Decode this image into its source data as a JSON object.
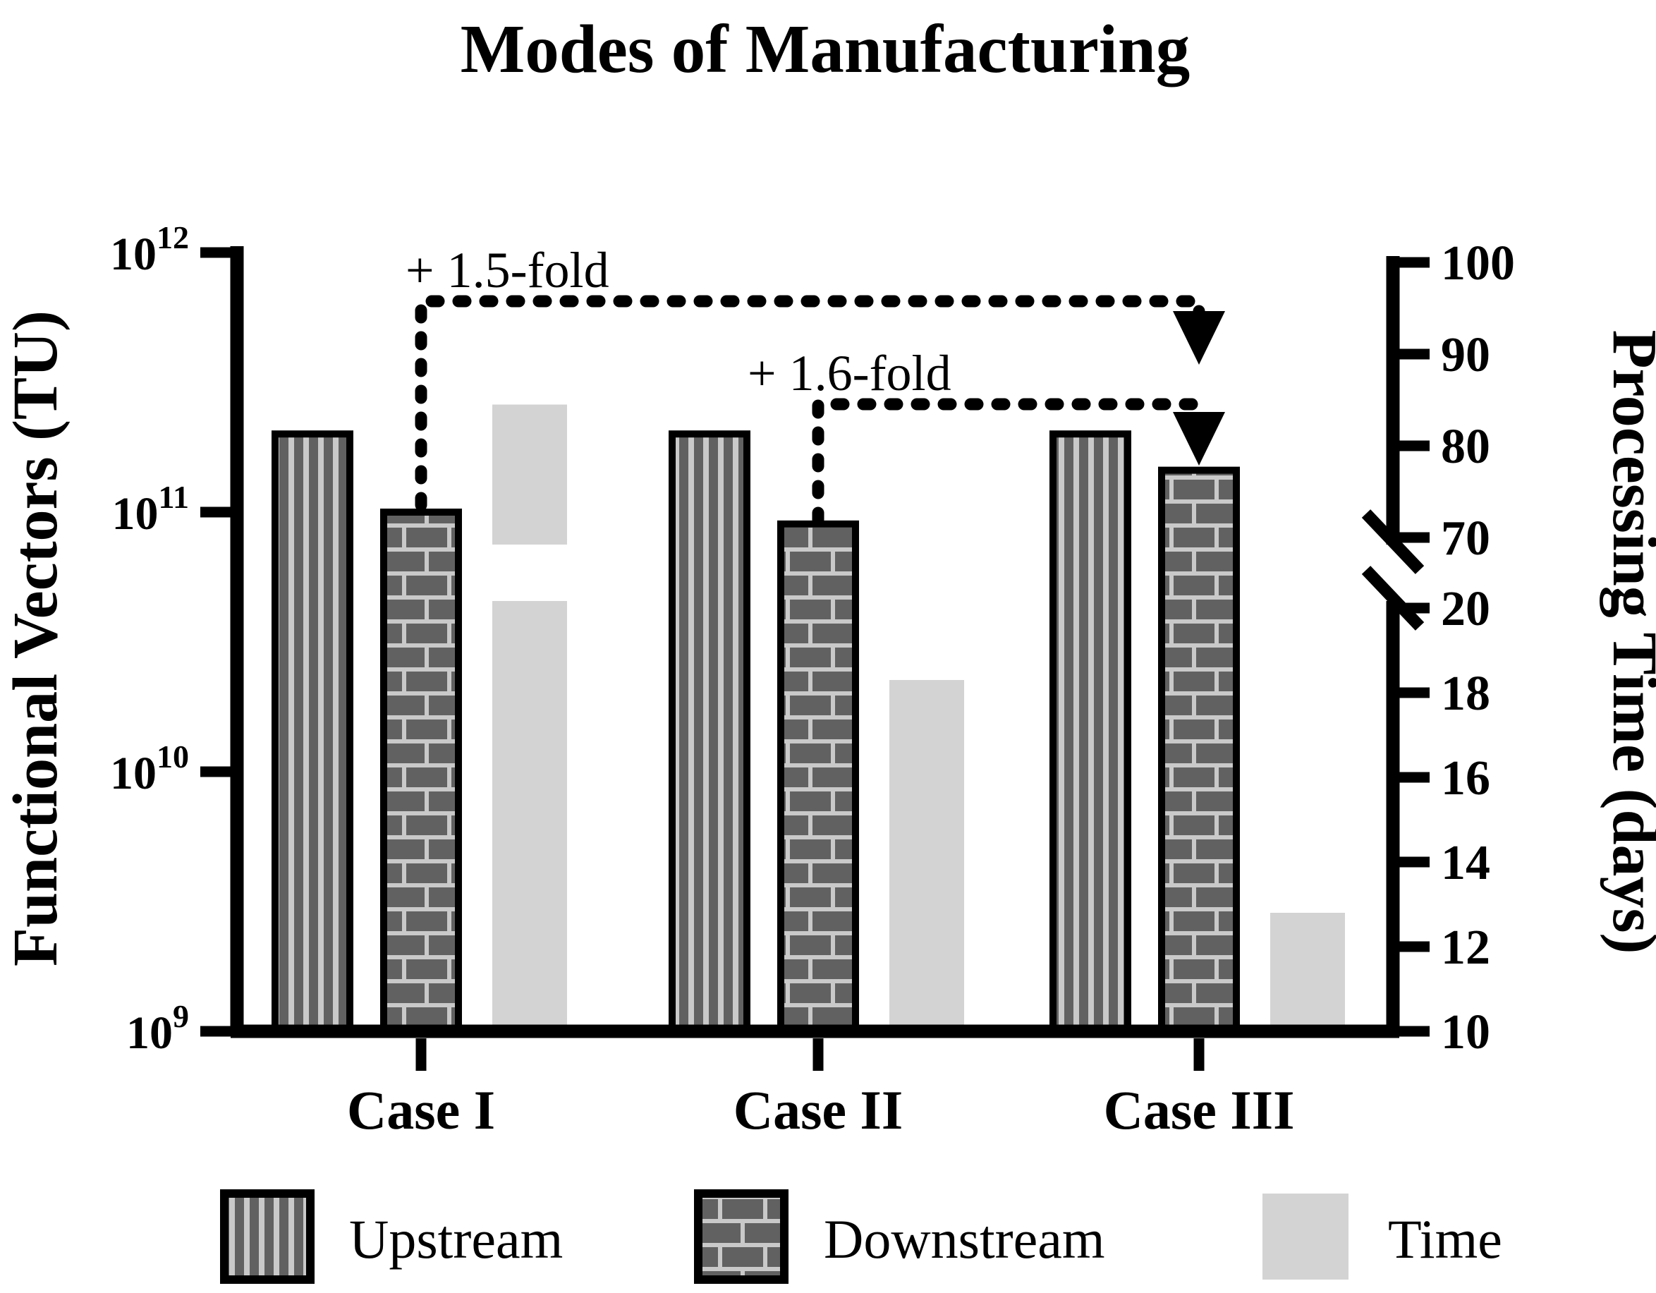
{
  "title": "Modes of Manufacturing",
  "chart_data": {
    "type": "bar",
    "categories": [
      "Case I",
      "Case II",
      "Case III"
    ],
    "series": [
      {
        "name": "Upstream",
        "axis": "left",
        "pattern": "vertical-stripes",
        "values": [
          200000000000.0,
          200000000000.0,
          200000000000.0
        ]
      },
      {
        "name": "Downstream",
        "axis": "left",
        "pattern": "bricks",
        "values": [
          100000000000.0,
          90000000000.0,
          145000000000.0
        ]
      },
      {
        "name": "Time",
        "axis": "right",
        "pattern": "solid-light-gray",
        "values": [
          84.5,
          18.3,
          12.8
        ]
      }
    ],
    "left_axis": {
      "label": "Functional Vectors (TU)",
      "scale": "log",
      "range": [
        1000000000.0,
        1000000000000.0
      ],
      "ticks": [
        {
          "base": "10",
          "exp": "12"
        },
        {
          "base": "10",
          "exp": "11"
        },
        {
          "base": "10",
          "exp": "10"
        },
        {
          "base": "10",
          "exp": "9"
        }
      ],
      "tick_values": [
        1000000000000.0,
        100000000000.0,
        10000000000.0,
        1000000000.0
      ]
    },
    "right_axis": {
      "label": "Processing Time (days)",
      "scale": "linear-with-break",
      "upper_ticks": [
        100,
        90,
        80,
        70
      ],
      "lower_ticks": [
        20,
        18,
        16,
        14,
        12,
        10
      ],
      "break_between": [
        20,
        70
      ]
    },
    "annotations": [
      {
        "text": "+ 1.5-fold",
        "series": "Downstream",
        "from_category": "Case I",
        "to_category": "Case III"
      },
      {
        "text": "+ 1.6-fold",
        "series": "Downstream",
        "from_category": "Case II",
        "to_category": "Case III"
      }
    ],
    "legend": [
      {
        "label": "Upstream"
      },
      {
        "label": "Downstream"
      },
      {
        "label": "Time"
      }
    ],
    "colors": {
      "bar_dark": "#616161",
      "pattern_light": "#c9c9c9",
      "time_fill": "#d3d3d3",
      "ink": "#000000",
      "background": "#ffffff"
    },
    "grid": "off",
    "legend_position": "bottom"
  }
}
